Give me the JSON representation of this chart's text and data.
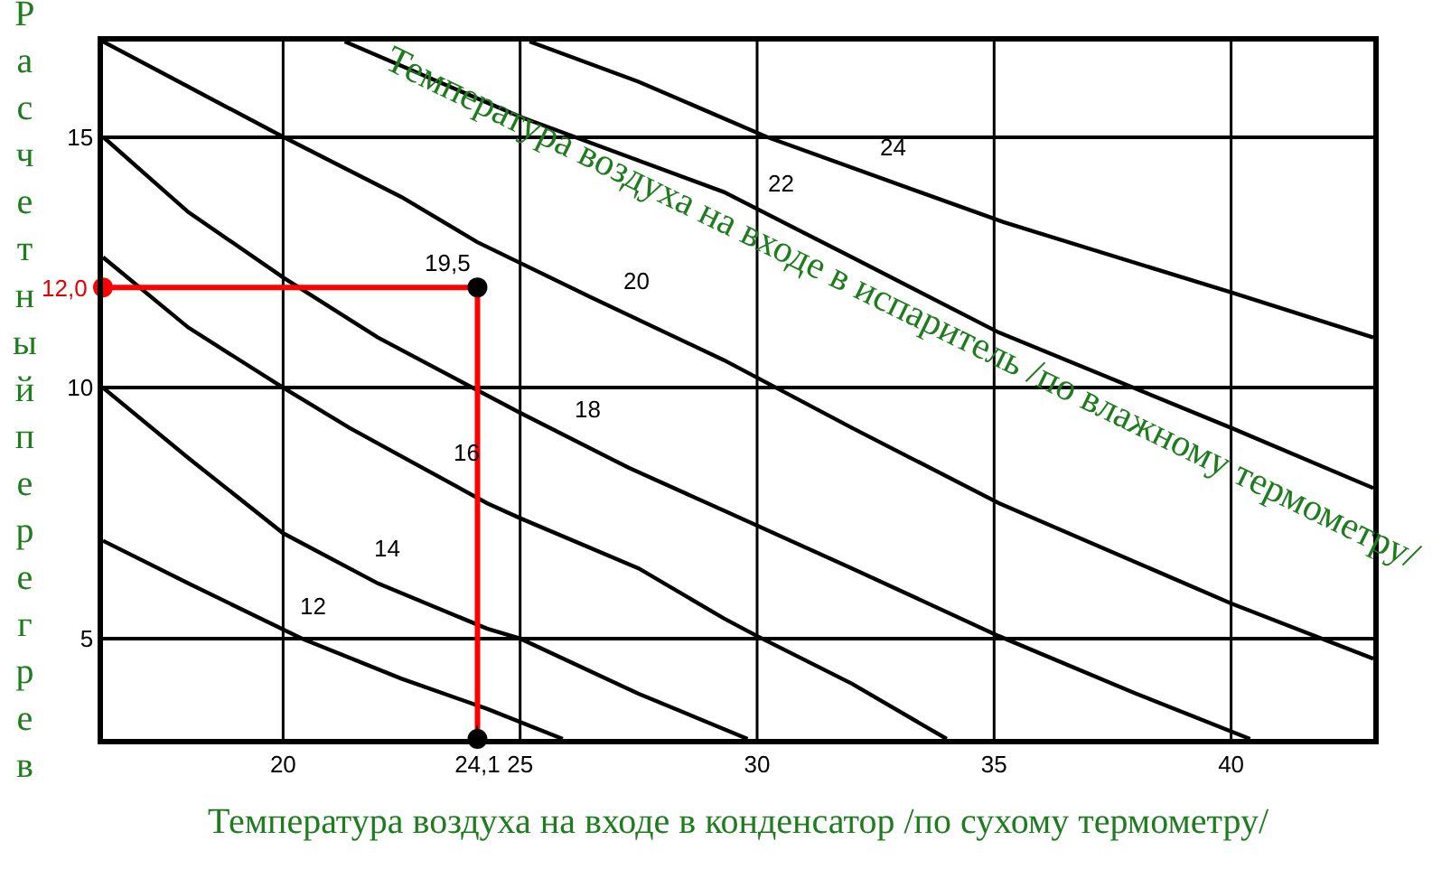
{
  "chart_data": {
    "type": "line",
    "xlabel": "Температура воздуха на входе в конденсатор /по сухому термометру/",
    "ylabel": "Расчетный перегрев",
    "legend_title": "Температура воздуха на входе в испаритель /по влажному термометру/",
    "xlim": [
      16.2,
      43
    ],
    "ylim": [
      3,
      16.9
    ],
    "xticks": [
      20,
      {
        "value": 24.1,
        "label": "24,1"
      },
      25,
      30,
      35,
      40
    ],
    "yticks": [
      5,
      10,
      15
    ],
    "grid": true,
    "legend": false,
    "marker": "none",
    "line_style": "solid",
    "series": [
      {
        "name": "12",
        "color": "#000000",
        "x": [
          16.2,
          18,
          20.4,
          22.5,
          24.3,
          25.9
        ],
        "values": [
          6.95,
          6.1,
          5.0,
          4.2,
          3.6,
          3.0
        ]
      },
      {
        "name": "14",
        "color": "#000000",
        "x": [
          16.2,
          18,
          20,
          22,
          24.3,
          25,
          27.5,
          29.8
        ],
        "values": [
          10.0,
          8.6,
          7.1,
          6.1,
          5.2,
          5.0,
          3.9,
          3.0
        ]
      },
      {
        "name": "16",
        "color": "#000000",
        "x": [
          16.2,
          18,
          20,
          21.4,
          24.3,
          25,
          27.5,
          29.3,
          30,
          32,
          34
        ],
        "values": [
          12.6,
          11.2,
          10.0,
          9.2,
          7.7,
          7.4,
          6.4,
          5.4,
          5.05,
          4.1,
          3.0
        ]
      },
      {
        "name": "18",
        "color": "#000000",
        "x": [
          16.2,
          18,
          20,
          22,
          25,
          27.3,
          29.3,
          32,
          35.1,
          38,
          40.4
        ],
        "values": [
          15.0,
          13.5,
          12.2,
          11.0,
          9.5,
          8.4,
          7.55,
          6.4,
          5.05,
          3.9,
          3.0
        ]
      },
      {
        "name": "20",
        "color": "#000000",
        "x": [
          16.2,
          18,
          20,
          22.5,
          24.1,
          26.5,
          29.3,
          32,
          35.1,
          40,
          43
        ],
        "values": [
          16.9,
          16.0,
          15.0,
          13.8,
          12.9,
          11.8,
          10.55,
          9.2,
          7.7,
          5.7,
          4.6
        ]
      },
      {
        "name": "22",
        "color": "#000000",
        "x": [
          21.3,
          25,
          29.3,
          32,
          35.1,
          40,
          43
        ],
        "values": [
          16.9,
          15.4,
          13.9,
          12.6,
          11.1,
          9.2,
          8.0
        ]
      },
      {
        "name": "24",
        "color": "#000000",
        "x": [
          25.2,
          27.5,
          30.2,
          35.2,
          40,
          43
        ],
        "values": [
          16.9,
          16.1,
          15.0,
          13.3,
          11.9,
          11.0
        ]
      },
      {
        "type": "line",
        "marker": "circle",
        "color": "#ff0000",
        "colors": [
          "#ff0000",
          "#000000",
          "#000000"
        ],
        "x": [
          16.2,
          24.1,
          24.1
        ],
        "values": [
          12.0,
          12.0,
          3.0
        ]
      }
    ],
    "annotations": [
      {
        "text": "12,0",
        "x": 16.2,
        "y": 12.0
      },
      {
        "text": "19,5",
        "x": 24.1,
        "y": 12.0
      }
    ]
  }
}
